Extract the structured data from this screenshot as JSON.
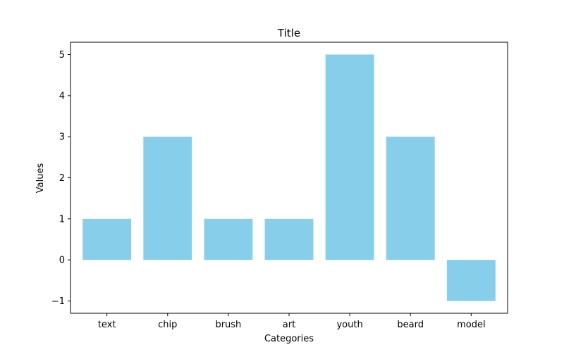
{
  "chart_data": {
    "type": "bar",
    "title": "Title",
    "xlabel": "Categories",
    "ylabel": "Values",
    "categories": [
      "text",
      "chip",
      "brush",
      "art",
      "youth",
      "beard",
      "model"
    ],
    "values": [
      1,
      3,
      1,
      1,
      5,
      3,
      -1
    ],
    "ylim": [
      -1.3,
      5.3
    ],
    "yticks": [
      -1,
      0,
      1,
      2,
      3,
      4,
      5
    ],
    "ytick_labels": [
      "−1",
      "0",
      "1",
      "2",
      "3",
      "4",
      "5"
    ],
    "grid": false,
    "bar_color": "#87CEEB"
  }
}
